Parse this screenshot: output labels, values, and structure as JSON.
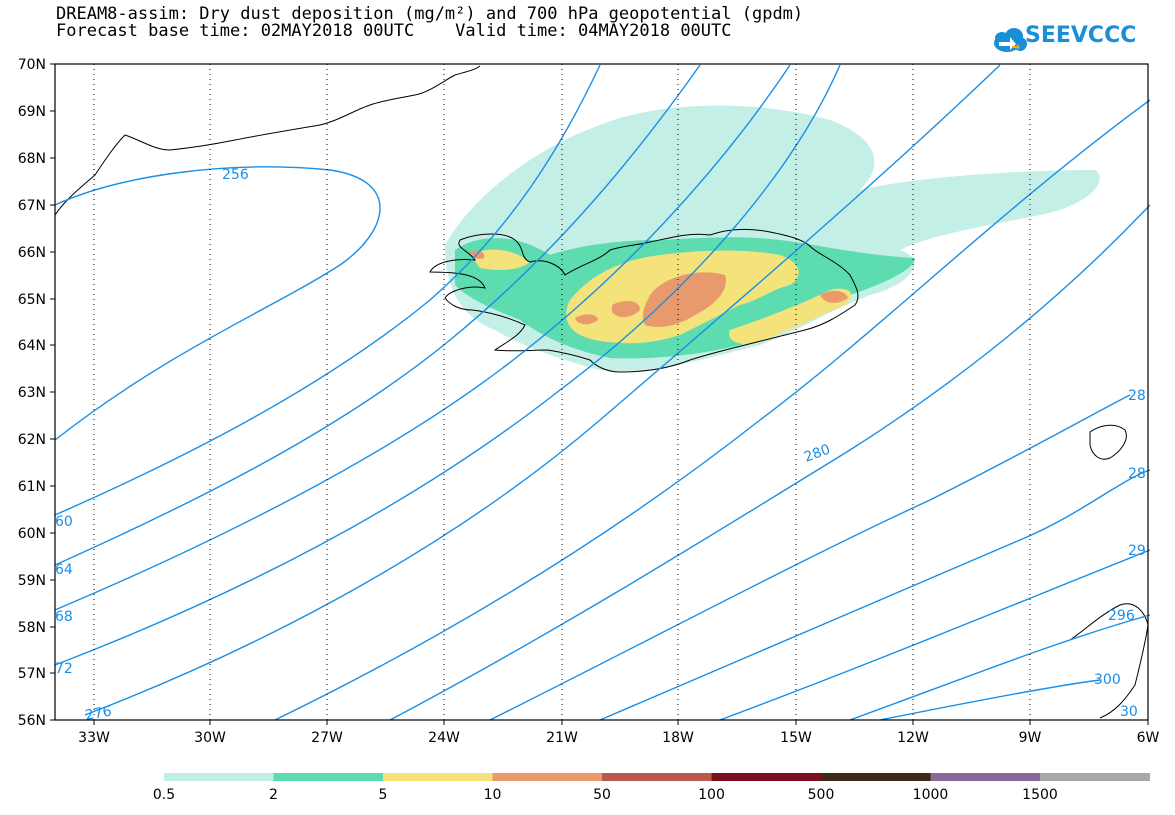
{
  "header": {
    "title_line1": "DREAM8-assim: Dry dust deposition (mg/m²) and 700 hPa geopotential (gpdm)",
    "title_line2": "Forecast base time: 02MAY2018 00UTC    Valid time: 04MAY2018 00UTC"
  },
  "logo": {
    "text": "SEEVCCC"
  },
  "axes": {
    "lat_labels": [
      "70N",
      "69N",
      "68N",
      "67N",
      "66N",
      "65N",
      "64N",
      "63N",
      "62N",
      "61N",
      "60N",
      "59N",
      "58N",
      "57N",
      "56N"
    ],
    "lon_labels": [
      "33W",
      "30W",
      "27W",
      "24W",
      "21W",
      "18W",
      "15W",
      "12W",
      "9W",
      "6W"
    ]
  },
  "contour_labels": {
    "c256": "256",
    "c280": "280",
    "l60": "60",
    "l64": "64",
    "l68": "68",
    "l72": "72",
    "l276": "276",
    "r28a": "28",
    "r28b": "28",
    "r29": "29",
    "r296": "296",
    "r300": "300",
    "r30": "30"
  },
  "colorbar": {
    "labels": [
      "0.5",
      "2",
      "5",
      "10",
      "50",
      "100",
      "500",
      "1000",
      "1500"
    ],
    "colors": [
      "#c4efe6",
      "#5ddcb0",
      "#f4e27a",
      "#e89a6c",
      "#b95a4f",
      "#7a1020",
      "#3f2a16",
      "#8a6a9a",
      "#a8a8a8"
    ]
  },
  "colors": {
    "contour": "#1a8fe6",
    "dust_light": "#c4efe6",
    "dust_green": "#5ddcb0",
    "dust_yellow": "#f4e27a",
    "dust_orange": "#e89a6c",
    "coast": "#000000"
  }
}
